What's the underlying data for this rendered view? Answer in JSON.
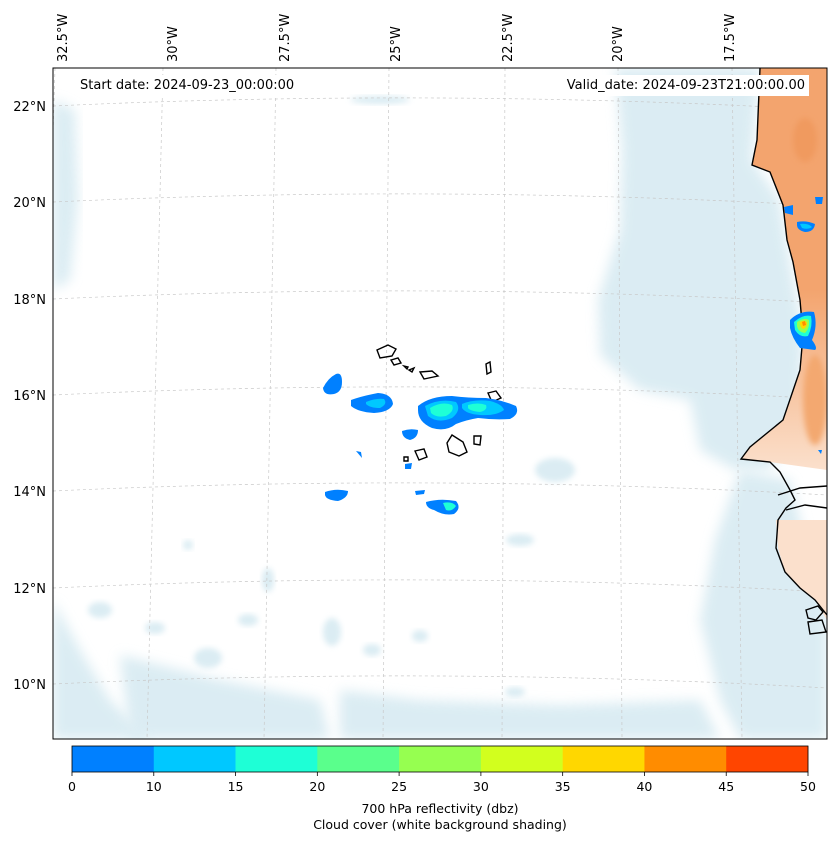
{
  "header": {
    "start_date": "Start date: 2024-09-23_00:00:00",
    "valid_date": "Valid_date: 2024-09-23T21:00:00.00"
  },
  "axes": {
    "lon_labels": [
      "32.5°W",
      "30°W",
      "27.5°W",
      "25°W",
      "22.5°W",
      "20°W",
      "17.5°W"
    ],
    "lat_labels": [
      "22°N",
      "20°N",
      "18°N",
      "16°N",
      "14°N",
      "12°N",
      "10°N"
    ]
  },
  "colorbar": {
    "ticks": [
      "0",
      "10",
      "15",
      "20",
      "25",
      "30",
      "35",
      "40",
      "45",
      "50"
    ],
    "colors": [
      "#0080ff",
      "#00c8ff",
      "#1effd6",
      "#5aff8c",
      "#96ff50",
      "#d2ff1e",
      "#ffd700",
      "#ff8c00",
      "#ff4500"
    ],
    "title_line1": "700 hPa reflectivity (dbz)",
    "title_line2": "Cloud cover (white background shading)"
  },
  "colors": {
    "cloud": "#cfe6ef",
    "land_warm": "#f3a46e",
    "land_light": "#fbe0cc",
    "coast": "#000000",
    "grid": "#c8c8c8"
  }
}
